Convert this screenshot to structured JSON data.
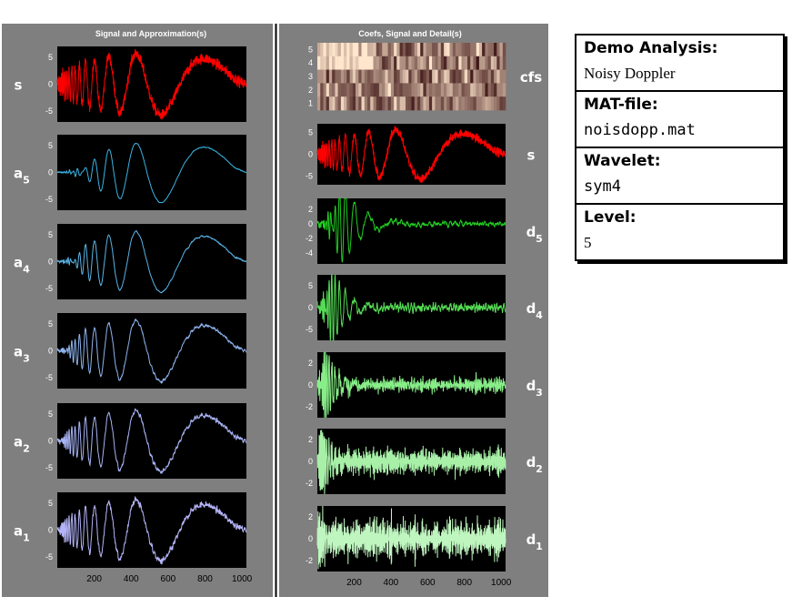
{
  "chart_data": {
    "type": "line",
    "signal_length": 1024,
    "x_ticks": [
      200,
      400,
      600,
      800,
      1000
    ],
    "left_column": {
      "title": "Signal and Approximation(s)",
      "rows": [
        {
          "label": "s",
          "sub": "",
          "color": "#ff0000",
          "yticks": [
            5,
            0,
            -5
          ],
          "kind": "signal",
          "noise": 0.5,
          "smooth": false
        },
        {
          "label": "a",
          "sub": "5",
          "color": "#39b5e6",
          "yticks": [
            5,
            0,
            -5
          ],
          "kind": "approx",
          "level": 5
        },
        {
          "label": "a",
          "sub": "4",
          "color": "#5ab4e8",
          "yticks": [
            5,
            0,
            -5
          ],
          "kind": "approx",
          "level": 4
        },
        {
          "label": "a",
          "sub": "3",
          "color": "#8eb4ee",
          "yticks": [
            5,
            0,
            -5
          ],
          "kind": "approx",
          "level": 3
        },
        {
          "label": "a",
          "sub": "2",
          "color": "#a6b2f2",
          "yticks": [
            5,
            0,
            -5
          ],
          "kind": "approx",
          "level": 2
        },
        {
          "label": "a",
          "sub": "1",
          "color": "#b4b4f8",
          "yticks": [
            5,
            0,
            -5
          ],
          "kind": "approx",
          "level": 1
        }
      ]
    },
    "right_column": {
      "title": "Coefs, Signal and Detail(s)",
      "rows": [
        {
          "label": "cfs",
          "sub": "",
          "kind": "coefs",
          "yticks": [
            5,
            4,
            3,
            2,
            1
          ]
        },
        {
          "label": "s",
          "sub": "",
          "color": "#ff0000",
          "yticks": [
            5,
            0,
            -5
          ],
          "kind": "signal"
        },
        {
          "label": "d",
          "sub": "5",
          "color": "#22cc22",
          "yticks": [
            2,
            0,
            -2,
            -4
          ],
          "kind": "detail",
          "level": 5
        },
        {
          "label": "d",
          "sub": "4",
          "color": "#55dd55",
          "yticks": [
            5,
            0,
            -5
          ],
          "kind": "detail",
          "level": 4
        },
        {
          "label": "d",
          "sub": "3",
          "color": "#88ee88",
          "yticks": [
            2,
            0,
            -2
          ],
          "kind": "detail",
          "level": 3
        },
        {
          "label": "d",
          "sub": "2",
          "color": "#a8f0a8",
          "yticks": [
            2,
            0,
            -2
          ],
          "kind": "detail",
          "level": 2
        },
        {
          "label": "d",
          "sub": "1",
          "color": "#bff5bf",
          "yticks": [
            2,
            0,
            -2
          ],
          "kind": "detail",
          "level": 1
        }
      ]
    }
  },
  "info": {
    "analysis_label": "Demo Analysis:",
    "analysis_value": "Noisy Doppler",
    "matfile_label": "MAT-file:",
    "matfile_value": "noisdopp.mat",
    "wavelet_label": "Wavelet:",
    "wavelet_value": "sym4",
    "level_label": "Level:",
    "level_value": "5"
  }
}
